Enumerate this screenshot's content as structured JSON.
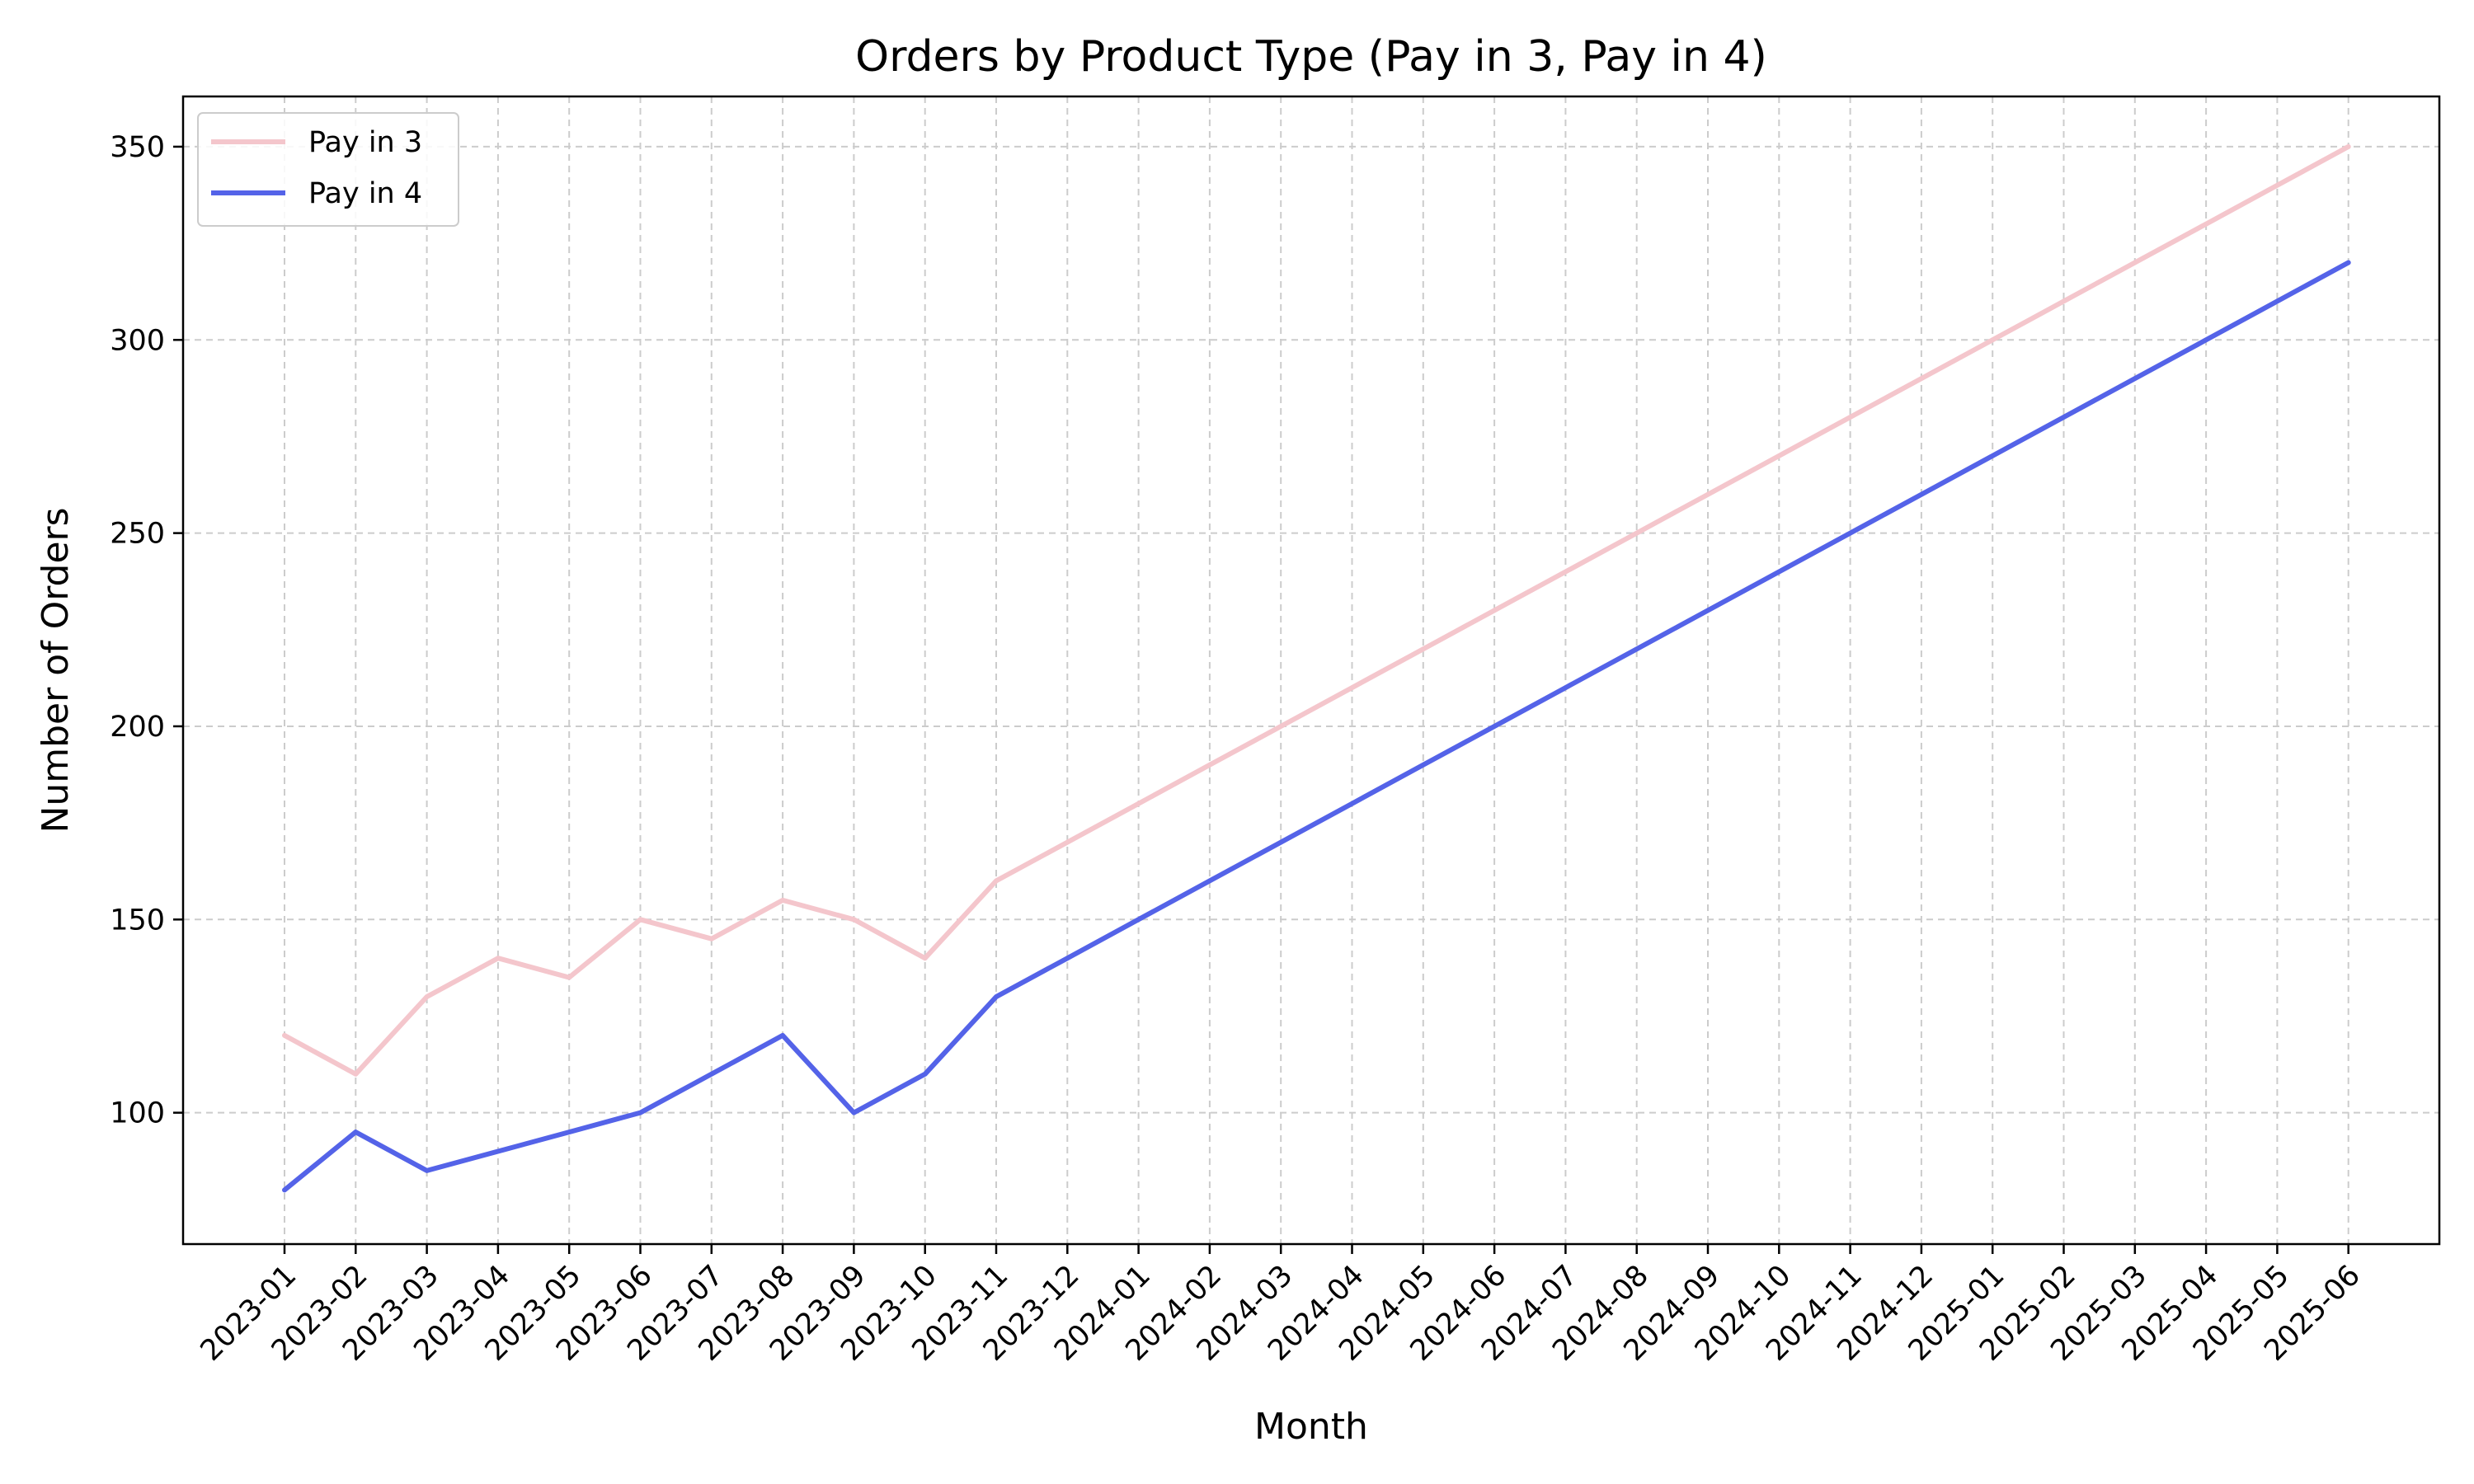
{
  "colors": {
    "pay_in_3": "#f4c6cc",
    "pay_in_4": "#5463e8",
    "grid": "#cccccc",
    "axes": "#000000"
  },
  "chart_data": {
    "type": "line",
    "title": "Orders by Product Type (Pay in 3, Pay in 4)",
    "xlabel": "Month",
    "ylabel": "Number of Orders",
    "x": [
      "2023-01",
      "2023-02",
      "2023-03",
      "2023-04",
      "2023-05",
      "2023-06",
      "2023-07",
      "2023-08",
      "2023-09",
      "2023-10",
      "2023-11",
      "2023-12",
      "2024-01",
      "2024-02",
      "2024-03",
      "2024-04",
      "2024-05",
      "2024-06",
      "2024-07",
      "2024-08",
      "2024-09",
      "2024-10",
      "2024-11",
      "2024-12",
      "2025-01",
      "2025-02",
      "2025-03",
      "2025-04",
      "2025-05",
      "2025-06"
    ],
    "ylim": [
      66,
      363
    ],
    "yticks": [
      100,
      150,
      200,
      250,
      300,
      350
    ],
    "grid": true,
    "legend_position": "top-left",
    "series": [
      {
        "name": "Pay in 3",
        "color": "#f4c6cc",
        "values": [
          120,
          110,
          130,
          140,
          135,
          150,
          145,
          155,
          150,
          140,
          160,
          170,
          180,
          190,
          200,
          210,
          220,
          230,
          240,
          250,
          260,
          270,
          280,
          290,
          300,
          310,
          320,
          330,
          340,
          350
        ]
      },
      {
        "name": "Pay in 4",
        "color": "#5463e8",
        "values": [
          80,
          95,
          85,
          90,
          95,
          100,
          110,
          120,
          100,
          110,
          130,
          140,
          150,
          160,
          170,
          180,
          190,
          200,
          210,
          220,
          230,
          240,
          250,
          260,
          270,
          280,
          290,
          300,
          310,
          320
        ]
      }
    ]
  }
}
